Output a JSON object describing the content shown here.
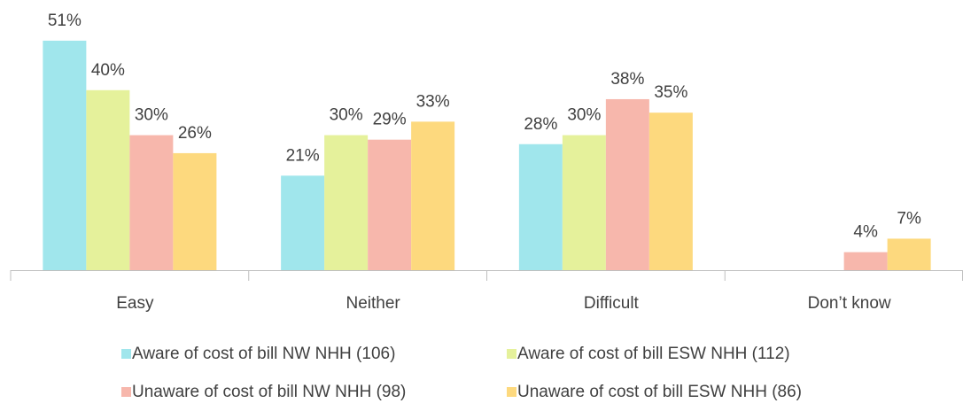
{
  "chart_data": {
    "type": "bar",
    "categories": [
      "Easy",
      "Neither",
      "Difficult",
      "Don’t know"
    ],
    "series": [
      {
        "name": "Aware of cost of bill NW NHH (106)",
        "color": "#a0e6ec",
        "values": [
          51,
          21,
          28,
          null
        ],
        "value_labels": [
          "51%",
          "21%",
          "28%",
          null
        ]
      },
      {
        "name": "Aware of cost of bill ESW NHH (112)",
        "color": "#e5f19b",
        "values": [
          40,
          30,
          30,
          null
        ],
        "value_labels": [
          "40%",
          "30%",
          "30%",
          null
        ]
      },
      {
        "name": "Unaware of cost of bill NW NHH (98)",
        "color": "#f7b7ac",
        "values": [
          30,
          29,
          38,
          4
        ],
        "value_labels": [
          "30%",
          "29%",
          "38%",
          "4%"
        ]
      },
      {
        "name": "Unaware of cost of bill ESW NHH (86)",
        "color": "#fdd97e",
        "values": [
          26,
          33,
          35,
          7
        ],
        "value_labels": [
          "26%",
          "33%",
          "35%",
          "7%"
        ]
      }
    ]
  }
}
